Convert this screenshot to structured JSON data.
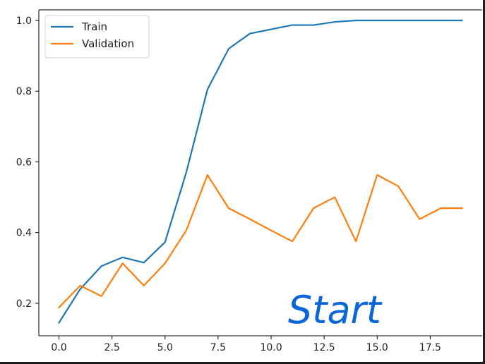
{
  "colors": {
    "train": "#1f77b4",
    "validation": "#ff7f0e",
    "annotation": "#0a66d8"
  },
  "annotation": {
    "text": "Start"
  },
  "chart_data": {
    "type": "line",
    "title": "",
    "xlabel": "",
    "ylabel": "",
    "xlim": [
      -0.95,
      19.95
    ],
    "ylim": [
      0.108,
      1.03
    ],
    "xticks": [
      0.0,
      2.5,
      5.0,
      7.5,
      10.0,
      12.5,
      15.0,
      17.5
    ],
    "xtick_labels": [
      "0.0",
      "2.5",
      "5.0",
      "7.5",
      "10.0",
      "12.5",
      "15.0",
      "17.5"
    ],
    "yticks": [
      0.2,
      0.4,
      0.6,
      0.8,
      1.0
    ],
    "ytick_labels": [
      "0.2",
      "0.4",
      "0.6",
      "0.8",
      "1.0"
    ],
    "grid": false,
    "legend_position": "upper-left",
    "x": [
      0,
      1,
      2,
      3,
      4,
      5,
      6,
      7,
      8,
      9,
      10,
      11,
      12,
      13,
      14,
      15,
      16,
      17,
      18,
      19
    ],
    "series": [
      {
        "name": "Train",
        "color": "#1f77b4",
        "values": [
          0.145,
          0.24,
          0.305,
          0.33,
          0.315,
          0.373,
          0.57,
          0.805,
          0.92,
          0.963,
          0.975,
          0.987,
          0.987,
          0.996,
          1.0,
          1.0,
          1.0,
          1.0,
          1.0,
          1.0
        ]
      },
      {
        "name": "Validation",
        "color": "#ff7f0e",
        "values": [
          0.188,
          0.25,
          0.22,
          0.313,
          0.25,
          0.313,
          0.406,
          0.563,
          0.469,
          0.438,
          0.406,
          0.375,
          0.469,
          0.5,
          0.375,
          0.563,
          0.531,
          0.438,
          0.469,
          0.469
        ]
      }
    ]
  }
}
